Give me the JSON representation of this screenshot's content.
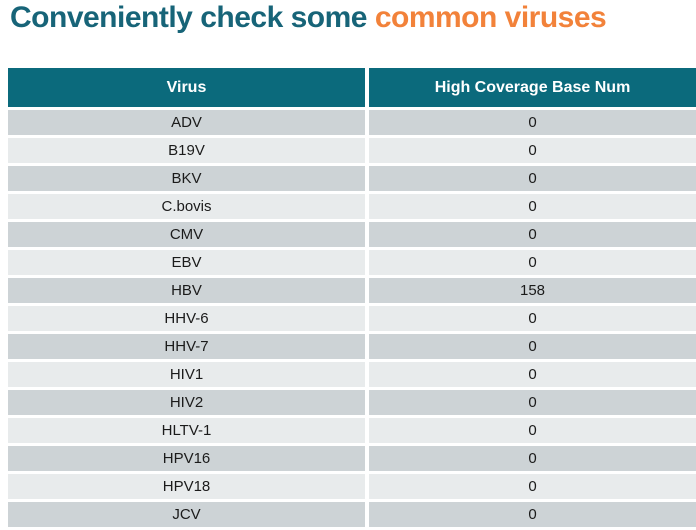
{
  "title": {
    "primary": "Conveniently check some",
    "highlight": "common viruses"
  },
  "colors": {
    "title_primary": "#176478",
    "title_highlight": "#f2823a",
    "header_bg": "#0b6a7c",
    "header_text": "#ffffff",
    "row_dark": "#cdd3d6",
    "row_light": "#e8ebec",
    "cell_text": "#1b1b1b",
    "page_bg": "#ffffff"
  },
  "chart_data": {
    "type": "table",
    "title": "Conveniently check some common viruses",
    "columns": [
      "Virus",
      "High Coverage Base Num"
    ],
    "rows": [
      [
        "ADV",
        0
      ],
      [
        "B19V",
        0
      ],
      [
        "BKV",
        0
      ],
      [
        "C.bovis",
        0
      ],
      [
        "CMV",
        0
      ],
      [
        "EBV",
        0
      ],
      [
        "HBV",
        158
      ],
      [
        "HHV-6",
        0
      ],
      [
        "HHV-7",
        0
      ],
      [
        "HIV1",
        0
      ],
      [
        "HIV2",
        0
      ],
      [
        "HLTV-1",
        0
      ],
      [
        "HPV16",
        0
      ],
      [
        "HPV18",
        0
      ],
      [
        "JCV",
        0
      ]
    ],
    "layout": {
      "row_shading": "alternating, first data row dark",
      "alignment": "all cells centered",
      "grid": "white gaps between cells, no borders"
    }
  }
}
